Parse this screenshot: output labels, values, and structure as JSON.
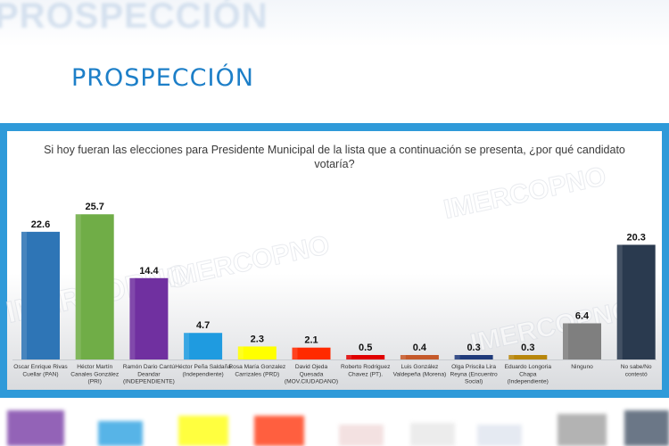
{
  "header": {
    "ghost_title": "PROSPECCIÓN",
    "title": "PROSPECCIÓN"
  },
  "chart_data": {
    "type": "bar",
    "title": "Si hoy fueran las elecciones para Presidente Municipal de la lista que a continuación se presenta, ¿por qué candidato votaría?",
    "categories": [
      [
        "Oscar Enrique Rivas",
        "Cuellar (PAN)"
      ],
      [
        "Héctor Martín",
        "Canales González",
        "(PRI)"
      ],
      [
        "Ramón Dario Cantú",
        "Deandar",
        "(INDEPENDIENTE)"
      ],
      [
        "Héctor Peña Saldaña",
        "(Independiente)"
      ],
      [
        "Rosa María Gonzalez",
        "Carrizales (PRD)"
      ],
      [
        "David Ojeda",
        "Quesada",
        "(MOV.CIUDADANO)"
      ],
      [
        "Roberto Rodriguez",
        "Chavez (PT)."
      ],
      [
        "Luis González",
        "Valdepeña (Morena)"
      ],
      [
        "Olga Priscila Lira",
        "Reyna (Encuentro",
        "Social)"
      ],
      [
        "Eduardo Longoria",
        "Chapa",
        "(Independiente)"
      ],
      [
        "Ninguno"
      ],
      [
        "No sabe/No",
        "contestó"
      ]
    ],
    "values": [
      22.6,
      25.7,
      14.4,
      4.7,
      2.3,
      2.1,
      0.5,
      0.4,
      0.3,
      0.3,
      6.4,
      20.3
    ],
    "value_labels": [
      "22.6",
      "25.7",
      "14.4",
      "4.7",
      "2.3",
      "2.1",
      "0.5",
      "0.4",
      "0.3",
      "0.3",
      "6.4",
      "20.3"
    ],
    "colors": [
      "#2e75b6",
      "#70ad47",
      "#7030a0",
      "#1f9be0",
      "#ffff00",
      "#ff2a00",
      "#e00000",
      "#c5592a",
      "#1f3a7a",
      "#b8860b",
      "#7f7f7f",
      "#2a3a4f"
    ],
    "ylim": [
      0,
      27
    ],
    "grid": false,
    "legend": "none",
    "watermark": "IMERCOPNO"
  }
}
